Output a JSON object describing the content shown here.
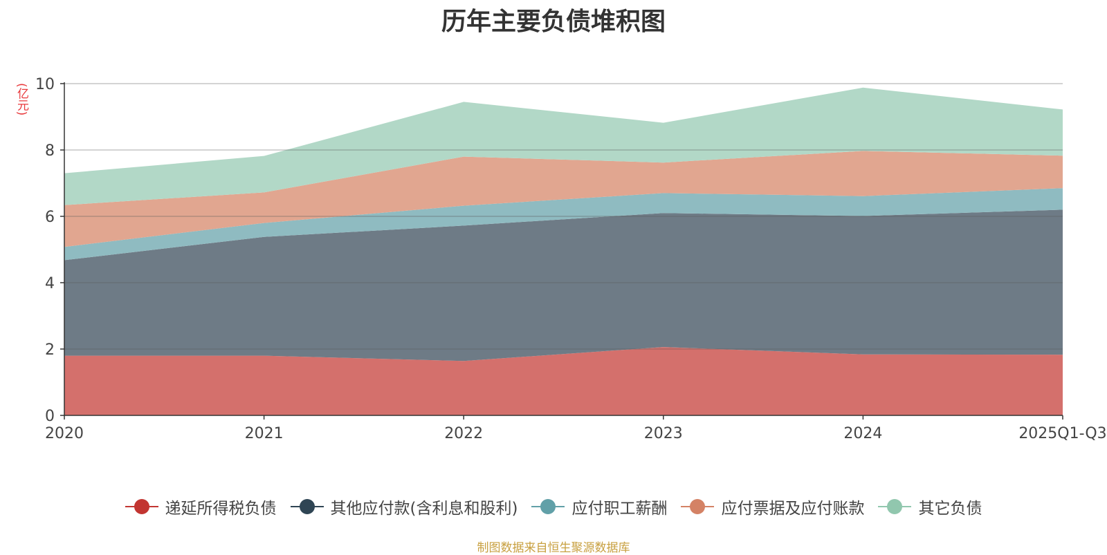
{
  "chart_data": {
    "type": "area",
    "stacked": true,
    "title": "历年主要负债堆积图",
    "ylabel": "(亿元)",
    "xlabel": "",
    "categories": [
      "2020",
      "2021",
      "2022",
      "2023",
      "2024",
      "2025Q1-Q3"
    ],
    "ylim": [
      0,
      10
    ],
    "yticks": [
      "0",
      "2",
      "4",
      "6",
      "8",
      "10"
    ],
    "grid": true,
    "legend_position": "bottom",
    "series": [
      {
        "name": "递延所得税负债",
        "color": "#c23531",
        "fill": "#d4706c",
        "values": [
          1.8,
          1.8,
          1.64,
          2.06,
          1.84,
          1.83
        ]
      },
      {
        "name": "其他应付款(含利息和股利)",
        "color": "#2f4554",
        "fill": "#6e7b86",
        "values": [
          2.88,
          3.58,
          4.08,
          4.04,
          4.17,
          4.37
        ]
      },
      {
        "name": "应付职工薪酬",
        "color": "#61a0a8",
        "fill": "#8fbbc1",
        "values": [
          0.4,
          0.42,
          0.6,
          0.6,
          0.6,
          0.65
        ]
      },
      {
        "name": "应付票据及应付账款",
        "color": "#d48265",
        "fill": "#e1a690",
        "values": [
          1.26,
          0.92,
          1.48,
          0.92,
          1.36,
          0.98
        ]
      },
      {
        "name": "其它负债",
        "color": "#91c7ae",
        "fill": "#b2d8c7",
        "values": [
          0.96,
          1.1,
          1.65,
          1.2,
          1.91,
          1.39
        ]
      }
    ],
    "source": "制图数据来自恒生聚源数据库"
  }
}
